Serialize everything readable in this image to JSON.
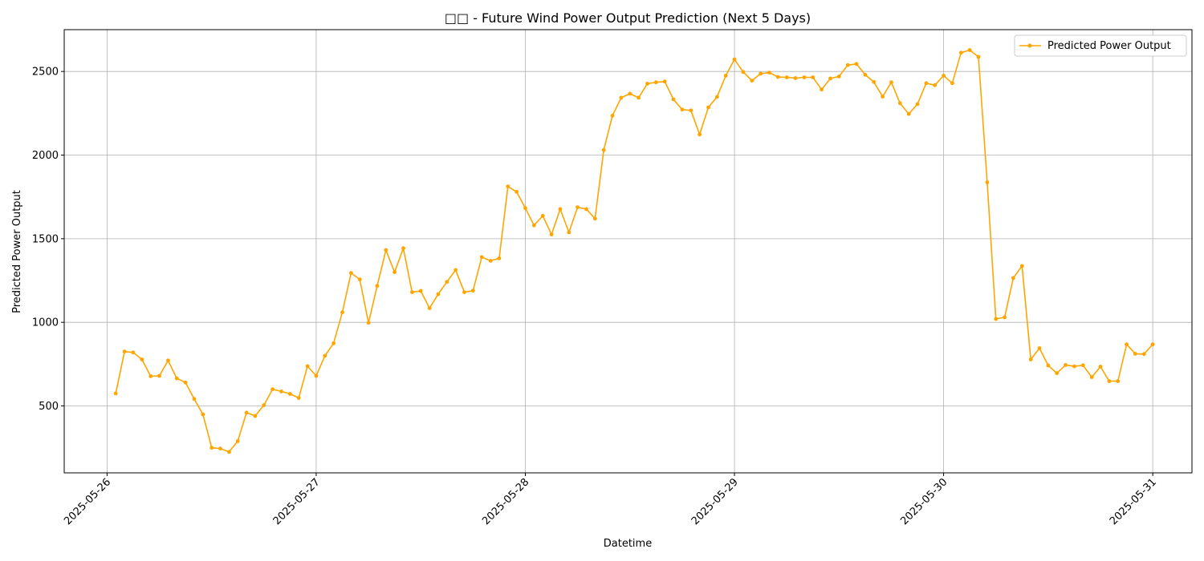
{
  "chart_data": {
    "type": "line",
    "title": "□□ - Future Wind Power Output Prediction (Next 5 Days)",
    "xlabel": "Datetime",
    "ylabel": "Predicted Power Output",
    "xlim": [
      "2025-05-25 19:05",
      "2025-05-31 04:30"
    ],
    "ylim": [
      100,
      2750
    ],
    "yticks": [
      500,
      1000,
      1500,
      2000,
      2500
    ],
    "xticks": [
      "2025-05-26",
      "2025-05-27",
      "2025-05-28",
      "2025-05-29",
      "2025-05-30",
      "2025-05-31"
    ],
    "grid": true,
    "legend_position": "top-right",
    "color": "#FFA500",
    "series": [
      {
        "name": "Predicted Power Output",
        "x": [
          "2025-05-26 01:00",
          "2025-05-26 02:00",
          "2025-05-26 03:00",
          "2025-05-26 04:00",
          "2025-05-26 05:00",
          "2025-05-26 06:00",
          "2025-05-26 07:00",
          "2025-05-26 08:00",
          "2025-05-26 09:00",
          "2025-05-26 10:00",
          "2025-05-26 11:00",
          "2025-05-26 12:00",
          "2025-05-26 13:00",
          "2025-05-26 14:00",
          "2025-05-26 15:00",
          "2025-05-26 16:00",
          "2025-05-26 17:00",
          "2025-05-26 18:00",
          "2025-05-26 19:00",
          "2025-05-26 20:00",
          "2025-05-26 21:00",
          "2025-05-26 22:00",
          "2025-05-26 23:00",
          "2025-05-27 00:00",
          "2025-05-27 01:00",
          "2025-05-27 02:00",
          "2025-05-27 03:00",
          "2025-05-27 04:00",
          "2025-05-27 05:00",
          "2025-05-27 06:00",
          "2025-05-27 07:00",
          "2025-05-27 08:00",
          "2025-05-27 09:00",
          "2025-05-27 10:00",
          "2025-05-27 11:00",
          "2025-05-27 12:00",
          "2025-05-27 13:00",
          "2025-05-27 14:00",
          "2025-05-27 15:00",
          "2025-05-27 16:00",
          "2025-05-27 17:00",
          "2025-05-27 18:00",
          "2025-05-27 19:00",
          "2025-05-27 20:00",
          "2025-05-27 21:00",
          "2025-05-27 22:00",
          "2025-05-27 23:00",
          "2025-05-28 00:00",
          "2025-05-28 01:00",
          "2025-05-28 02:00",
          "2025-05-28 03:00",
          "2025-05-28 04:00",
          "2025-05-28 05:00",
          "2025-05-28 06:00",
          "2025-05-28 07:00",
          "2025-05-28 08:00",
          "2025-05-28 09:00",
          "2025-05-28 10:00",
          "2025-05-28 11:00",
          "2025-05-28 12:00",
          "2025-05-28 13:00",
          "2025-05-28 14:00",
          "2025-05-28 15:00",
          "2025-05-28 16:00",
          "2025-05-28 17:00",
          "2025-05-28 18:00",
          "2025-05-28 19:00",
          "2025-05-28 20:00",
          "2025-05-28 21:00",
          "2025-05-28 22:00",
          "2025-05-28 23:00",
          "2025-05-29 00:00",
          "2025-05-29 01:00",
          "2025-05-29 02:00",
          "2025-05-29 03:00",
          "2025-05-29 04:00",
          "2025-05-29 05:00",
          "2025-05-29 06:00",
          "2025-05-29 07:00",
          "2025-05-29 08:00",
          "2025-05-29 09:00",
          "2025-05-29 10:00",
          "2025-05-29 11:00",
          "2025-05-29 12:00",
          "2025-05-29 13:00",
          "2025-05-29 14:00",
          "2025-05-29 15:00",
          "2025-05-29 16:00",
          "2025-05-29 17:00",
          "2025-05-29 18:00",
          "2025-05-29 19:00",
          "2025-05-29 20:00",
          "2025-05-29 21:00",
          "2025-05-29 22:00",
          "2025-05-29 23:00",
          "2025-05-30 00:00",
          "2025-05-30 01:00",
          "2025-05-30 02:00",
          "2025-05-30 03:00",
          "2025-05-30 04:00",
          "2025-05-30 05:00",
          "2025-05-30 06:00",
          "2025-05-30 07:00",
          "2025-05-30 08:00",
          "2025-05-30 09:00",
          "2025-05-30 10:00",
          "2025-05-30 11:00",
          "2025-05-30 12:00",
          "2025-05-30 13:00",
          "2025-05-30 14:00",
          "2025-05-30 15:00",
          "2025-05-30 16:00",
          "2025-05-30 17:00",
          "2025-05-30 18:00",
          "2025-05-30 19:00",
          "2025-05-30 20:00",
          "2025-05-30 21:00",
          "2025-05-30 22:00",
          "2025-05-30 23:00",
          "2025-05-31 00:00"
        ],
        "values": [
          575,
          825,
          820,
          778,
          678,
          680,
          772,
          665,
          640,
          542,
          450,
          250,
          245,
          225,
          290,
          460,
          440,
          505,
          600,
          587,
          572,
          548,
          738,
          680,
          800,
          875,
          1060,
          1295,
          1257,
          997,
          1218,
          1432,
          1300,
          1443,
          1180,
          1188,
          1085,
          1168,
          1242,
          1313,
          1180,
          1189,
          1390,
          1368,
          1383,
          1812,
          1780,
          1683,
          1580,
          1637,
          1525,
          1677,
          1538,
          1688,
          1677,
          1620,
          2030,
          2236,
          2343,
          2367,
          2343,
          2427,
          2435,
          2440,
          2333,
          2272,
          2267,
          2123,
          2285,
          2348,
          2475,
          2572,
          2497,
          2445,
          2487,
          2493,
          2467,
          2465,
          2460,
          2465,
          2465,
          2392,
          2458,
          2470,
          2538,
          2545,
          2480,
          2437,
          2350,
          2435,
          2310,
          2246,
          2305,
          2430,
          2418,
          2475,
          2430,
          2612,
          2628,
          2587,
          1837,
          1020,
          1030,
          1265,
          1337,
          778,
          845,
          742,
          696,
          745,
          737,
          743,
          672,
          735,
          648,
          648,
          868,
          812,
          810,
          868
        ]
      }
    ]
  }
}
